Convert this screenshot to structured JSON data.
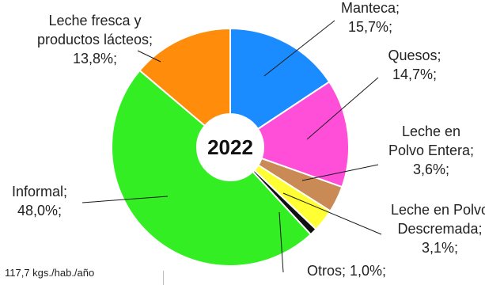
{
  "chart_data": {
    "type": "pie",
    "center_label": "2022",
    "slices": [
      {
        "name": "Manteca",
        "value": 15.7,
        "value_label": "15,7%;",
        "label_lines": [
          "Manteca;"
        ],
        "color": "#1a8cff"
      },
      {
        "name": "Quesos",
        "value": 14.7,
        "value_label": "14,7%;",
        "label_lines": [
          "Quesos;"
        ],
        "color": "#ff4fd8"
      },
      {
        "name": "Leche en Polvo Entera",
        "value": 3.6,
        "value_label": "3,6%;",
        "label_lines": [
          "Leche en",
          "Polvo Entera;"
        ],
        "color": "#c98a55"
      },
      {
        "name": "Leche en Polvo Descremada",
        "value": 3.1,
        "value_label": "3,1%;",
        "label_lines": [
          "Leche en Polvo",
          "Descremada;"
        ],
        "color": "#ffff33"
      },
      {
        "name": "Otros",
        "value": 1.0,
        "value_label": "1,0%;",
        "label_lines": [
          "Otros;"
        ],
        "color": "#111111"
      },
      {
        "name": "Informal",
        "value": 48.0,
        "value_label": "48,0%;",
        "label_lines": [
          "Informal;"
        ],
        "color": "#33ee22"
      },
      {
        "name": "Leche fresca y productos lácteos",
        "value": 13.8,
        "value_label": "13,8%;",
        "label_lines": [
          "Leche fresca y",
          "productos lácteos;"
        ],
        "color": "#ff8c0a"
      }
    ]
  },
  "footnote": "117,7 kgs./hab./año"
}
